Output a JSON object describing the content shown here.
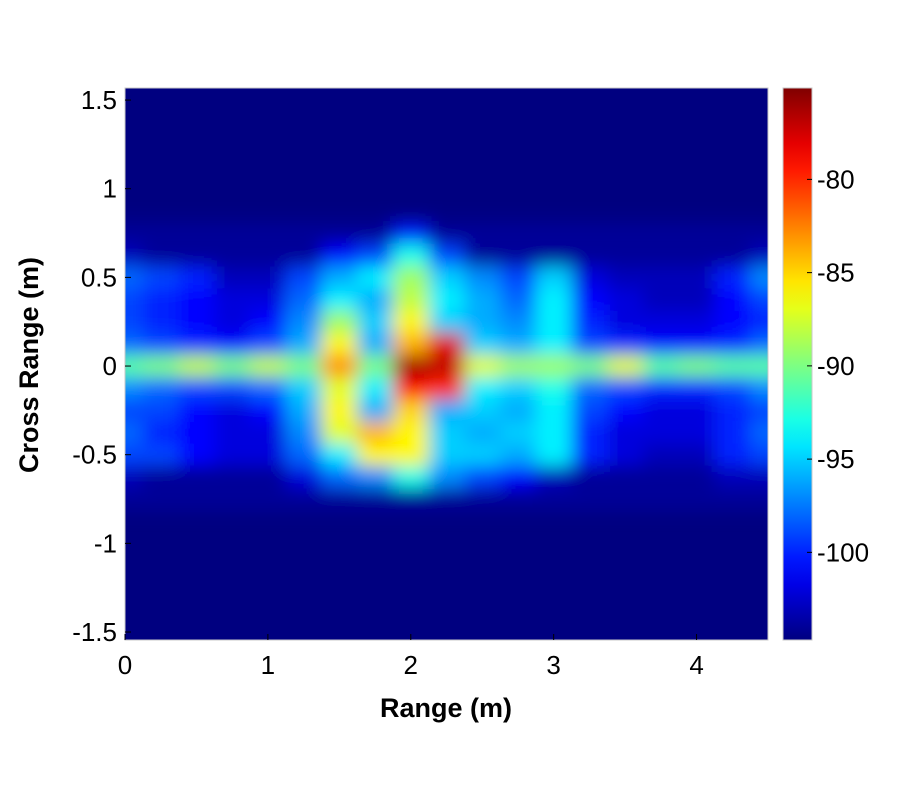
{
  "chart_data": {
    "type": "heatmap",
    "title": "",
    "xlabel": "Range (m)",
    "ylabel": "Cross Range (m)",
    "xlim": [
      0,
      4.5
    ],
    "ylim": [
      -1.545,
      1.568
    ],
    "xticks": [
      "0",
      "1",
      "2",
      "3",
      "4"
    ],
    "xtick_values": [
      0,
      1,
      2,
      3,
      4
    ],
    "yticks": [
      "1.5",
      "1",
      "0.5",
      "0",
      "-0.5",
      "-1",
      "-1.5"
    ],
    "ytick_values": [
      1.5,
      1,
      0.5,
      0,
      -0.5,
      -1,
      -1.5
    ],
    "colormap": "jet",
    "clim": [
      -104.7,
      -75.1
    ],
    "colorbar_ticks": [
      "-80",
      "-85",
      "-90",
      "-95",
      "-100"
    ],
    "colorbar_tick_values": [
      -80,
      -85,
      -90,
      -95,
      -100
    ],
    "background_value": -104.7,
    "grid_x": [
      0,
      0.25,
      0.5,
      0.75,
      1,
      1.25,
      1.5,
      1.75,
      2,
      2.25,
      2.5,
      2.75,
      3,
      3.25,
      3.5,
      3.75,
      4,
      4.25,
      4.5
    ],
    "grid_y": [
      0.75,
      0.625,
      0.5,
      0.375,
      0.25,
      0.125,
      0,
      -0.125,
      -0.25,
      -0.375,
      -0.5,
      -0.625,
      -0.75
    ],
    "values": [
      [
        -104,
        -104,
        -104,
        -104,
        -104,
        -104,
        -104,
        -104,
        -100,
        -104,
        -104,
        -104,
        -104,
        -104,
        -104,
        -104,
        -104,
        -104,
        -104
      ],
      [
        -103,
        -104,
        -104,
        -104,
        -104,
        -104,
        -101,
        -99,
        -93,
        -99,
        -104,
        -104,
        -104,
        -104,
        -104,
        -104,
        -104,
        -104,
        -103
      ],
      [
        -98,
        -99,
        -100,
        -103,
        -103,
        -99,
        -96,
        -94,
        -89,
        -95,
        -97,
        -99,
        -95,
        -102,
        -103,
        -103,
        -103,
        -100,
        -97
      ],
      [
        -99,
        -100,
        -101,
        -102,
        -102,
        -98,
        -94,
        -96,
        -88,
        -94,
        -96,
        -98,
        -94,
        -101,
        -102,
        -103,
        -103,
        -101,
        -99
      ],
      [
        -99,
        -100,
        -101,
        -102,
        -101,
        -97,
        -89,
        -95,
        -86,
        -95,
        -96,
        -97,
        -94,
        -100,
        -102,
        -102,
        -102,
        -101,
        -100
      ],
      [
        -98,
        -99,
        -100,
        -101,
        -99,
        -96,
        -86,
        -96,
        -84,
        -78,
        -95,
        -96,
        -94,
        -99,
        -100,
        -101,
        -101,
        -100,
        -98
      ],
      [
        -91,
        -90,
        -88,
        -90,
        -88,
        -90,
        -83,
        -90,
        -76,
        -77,
        -87,
        -89,
        -89,
        -90,
        -87,
        -91,
        -90,
        -91,
        -91
      ],
      [
        -97,
        -98,
        -99,
        -99,
        -98,
        -95,
        -87,
        -94,
        -79,
        -80,
        -94,
        -95,
        -93,
        -98,
        -99,
        -100,
        -100,
        -99,
        -97
      ],
      [
        -99,
        -99,
        -101,
        -102,
        -101,
        -96,
        -86,
        -96,
        -85,
        -96,
        -95,
        -96,
        -94,
        -99,
        -101,
        -102,
        -102,
        -100,
        -99
      ],
      [
        -98,
        -100,
        -101,
        -102,
        -102,
        -97,
        -87,
        -84,
        -86,
        -95,
        -96,
        -95,
        -94,
        -100,
        -102,
        -102,
        -102,
        -100,
        -98
      ],
      [
        -99,
        -99,
        -101,
        -102,
        -102,
        -98,
        -94,
        -86,
        -86,
        -95,
        -95,
        -96,
        -94,
        -100,
        -102,
        -103,
        -103,
        -100,
        -99
      ],
      [
        -103,
        -104,
        -104,
        -104,
        -104,
        -102,
        -98,
        -97,
        -93,
        -97,
        -99,
        -101,
        -103,
        -104,
        -104,
        -104,
        -104,
        -103,
        -103
      ],
      [
        -104,
        -104,
        -104,
        -104,
        -104,
        -104,
        -104,
        -104,
        -104,
        -104,
        -104,
        -104,
        -104,
        -104,
        -104,
        -104,
        -104,
        -104,
        -104
      ]
    ]
  }
}
